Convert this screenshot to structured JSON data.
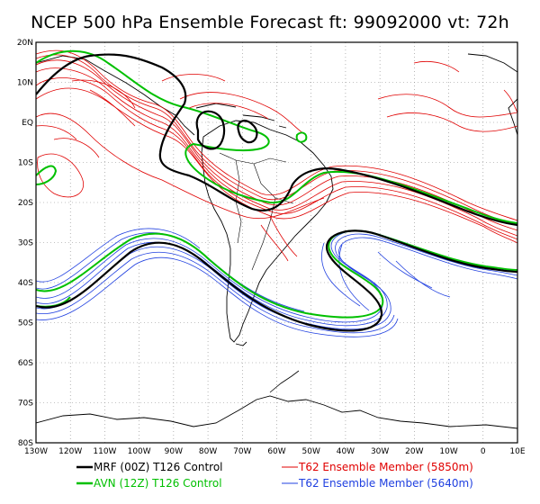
{
  "title": "NCEP 500 hPa Ensemble Forecast   ft: 99092000 vt: 72h",
  "map": {
    "lat_labels": [
      "20N",
      "10N",
      "EQ",
      "10S",
      "20S",
      "30S",
      "40S",
      "50S",
      "60S",
      "70S",
      "80S"
    ],
    "lon_labels": [
      "130W",
      "120W",
      "110W",
      "100W",
      "90W",
      "80W",
      "70W",
      "60W",
      "50W",
      "40W",
      "30W",
      "20W",
      "10W",
      "0",
      "10E"
    ],
    "lon_range": [
      -130,
      10
    ],
    "lat_range": [
      -80,
      20
    ],
    "grid": "dotted"
  },
  "legend": [
    {
      "label": "MRF (00Z) T126 Control",
      "color": "#000000"
    },
    {
      "label": "AVN (12Z) T126 Control",
      "color": "#00c000"
    },
    {
      "label": "T62 Ensemble Member (5850m)",
      "color": "#e00000"
    },
    {
      "label": "T62 Ensemble Member (5640m)",
      "color": "#2040e0"
    }
  ],
  "colors": {
    "mrf": "#000000",
    "avn": "#00c000",
    "ens_5850": "#e00000",
    "ens_5640": "#2040e0"
  }
}
